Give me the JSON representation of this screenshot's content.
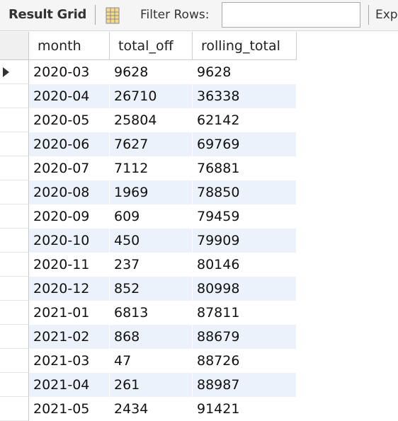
{
  "toolbar": {
    "title": "Result Grid",
    "grid_icon": "grid-view-icon",
    "filter_label": "Filter Rows:",
    "filter_value": "",
    "filter_placeholder": "",
    "export_label": "Exp"
  },
  "grid": {
    "columns": [
      "month",
      "total_off",
      "rolling_total"
    ],
    "rows": [
      [
        "2020-03",
        "9628",
        "9628"
      ],
      [
        "2020-04",
        "26710",
        "36338"
      ],
      [
        "2020-05",
        "25804",
        "62142"
      ],
      [
        "2020-06",
        "7627",
        "69769"
      ],
      [
        "2020-07",
        "7112",
        "76881"
      ],
      [
        "2020-08",
        "1969",
        "78850"
      ],
      [
        "2020-09",
        "609",
        "79459"
      ],
      [
        "2020-10",
        "450",
        "79909"
      ],
      [
        "2020-11",
        "237",
        "80146"
      ],
      [
        "2020-12",
        "852",
        "80998"
      ],
      [
        "2021-01",
        "6813",
        "87811"
      ],
      [
        "2021-02",
        "868",
        "88679"
      ],
      [
        "2021-03",
        "47",
        "88726"
      ],
      [
        "2021-04",
        "261",
        "88987"
      ],
      [
        "2021-05",
        "2434",
        "91421"
      ]
    ],
    "selected_row": 0,
    "colors": {
      "alt_row": "#ebf2fb",
      "header_bg": "#ffffff",
      "toolbar_bg": "#f5f5f5"
    }
  }
}
